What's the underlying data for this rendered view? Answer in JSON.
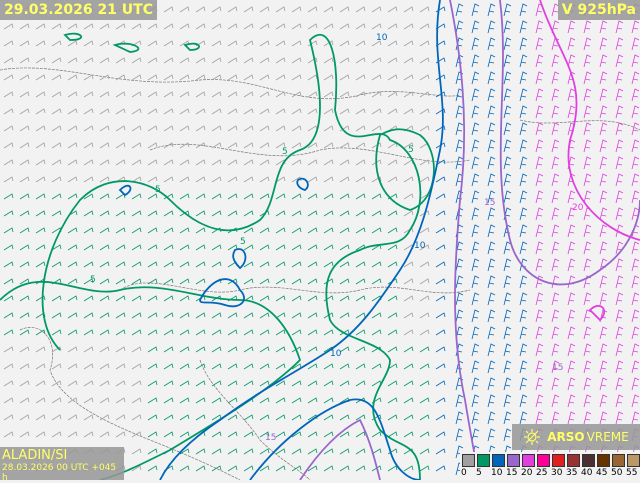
{
  "header": {
    "valid_time": "29.03.2026 21 UTC",
    "level": "V 925hPa"
  },
  "model": {
    "name": "ALADIN/SI",
    "run": "28.03.2026 00 UTC +045 h"
  },
  "brand": {
    "logo_icon": "arso-sun-icon",
    "name_bold": "ARSO",
    "name_light": "VREME"
  },
  "legend": {
    "ticks": [
      "0",
      "5",
      "10",
      "15",
      "20",
      "25",
      "30",
      "35",
      "40",
      "45",
      "50",
      "55"
    ],
    "colors": [
      "#a0a0a0",
      "#009966",
      "#0066bb",
      "#9966cc",
      "#e040e0",
      "#ff0099",
      "#e02020",
      "#993333",
      "#4a3030",
      "#663300",
      "#996633",
      "#bb9966"
    ]
  },
  "contours": {
    "labels": [
      "5",
      "5",
      "5",
      "5",
      "5",
      "10",
      "10",
      "10",
      "15",
      "15",
      "15",
      "20"
    ]
  }
}
